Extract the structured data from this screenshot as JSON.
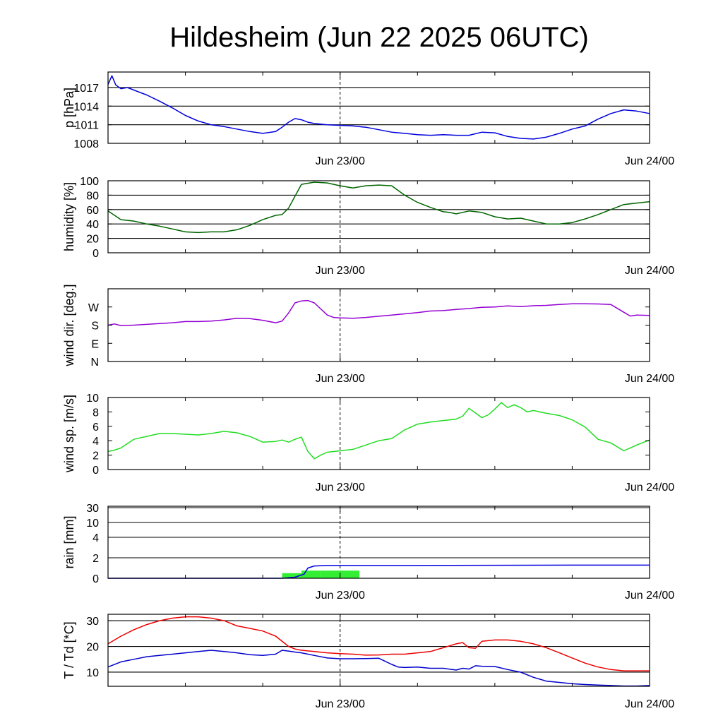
{
  "title": "Hildesheim (Jun 22 2025 06UTC)",
  "x_ticks": [
    {
      "hour": 18,
      "label": "Jun 23/00"
    },
    {
      "hour": 42,
      "label": "Jun 24/00"
    }
  ],
  "x_range_hours": [
    0,
    42
  ],
  "colors": {
    "pressure": "#0000dd",
    "humidity": "#006400",
    "wind_dir": "#9400d3",
    "wind_speed": "#22dd22",
    "rain_bar": "#33ee33",
    "rain_accum": "#0000dd",
    "temperature": "#ee0000",
    "dewpoint": "#0000cc",
    "grid": "#000000"
  },
  "chart_data": [
    {
      "type": "line",
      "ylabel": "p [hPa]",
      "ylim": [
        1008,
        1019.5
      ],
      "yticks": [
        {
          "v": 1008,
          "label": "1008"
        },
        {
          "v": 1011,
          "label": "1011"
        },
        {
          "v": 1014,
          "label": "1014"
        },
        {
          "v": 1017,
          "label": "1017"
        }
      ],
      "grid": [
        1008,
        1011,
        1014,
        1017
      ],
      "series": [
        {
          "key": "pressure",
          "x": [
            0,
            0.3,
            0.6,
            1,
            1.5,
            2,
            3,
            4,
            5,
            6,
            7,
            8,
            9,
            10,
            11,
            12,
            13,
            13.5,
            14,
            14.5,
            15,
            15.5,
            16,
            17,
            18,
            19,
            20,
            21,
            22,
            23,
            24,
            25,
            26,
            27,
            28,
            29,
            30,
            31,
            32,
            33,
            34,
            35,
            36,
            37,
            38,
            39,
            40,
            41,
            42
          ],
          "y": [
            1017.5,
            1018.9,
            1017.4,
            1016.8,
            1017.0,
            1016.6,
            1015.8,
            1014.8,
            1013.7,
            1012.5,
            1011.6,
            1011.0,
            1010.7,
            1010.3,
            1009.9,
            1009.6,
            1009.9,
            1010.6,
            1011.4,
            1012.0,
            1011.8,
            1011.4,
            1011.2,
            1011.0,
            1010.9,
            1010.8,
            1010.6,
            1010.2,
            1009.8,
            1009.6,
            1009.4,
            1009.3,
            1009.4,
            1009.3,
            1009.3,
            1009.8,
            1009.7,
            1009.1,
            1008.8,
            1008.7,
            1009.0,
            1009.6,
            1010.3,
            1010.8,
            1011.9,
            1012.8,
            1013.4,
            1013.2,
            1012.8
          ]
        }
      ]
    },
    {
      "type": "line",
      "ylabel": "humidity [%]",
      "ylim": [
        0,
        100
      ],
      "yticks": [
        {
          "v": 0,
          "label": "0"
        },
        {
          "v": 20,
          "label": "20"
        },
        {
          "v": 40,
          "label": "40"
        },
        {
          "v": 60,
          "label": "60"
        },
        {
          "v": 80,
          "label": "80"
        },
        {
          "v": 100,
          "label": "100"
        }
      ],
      "grid": [
        20,
        40,
        60,
        80,
        100
      ],
      "series": [
        {
          "key": "humidity",
          "x": [
            0,
            1,
            2,
            3,
            4,
            5,
            6,
            7,
            8,
            9,
            10,
            11,
            12,
            13,
            13.5,
            14,
            15,
            16,
            17,
            18,
            19,
            20,
            21,
            22,
            23,
            24,
            25,
            26,
            26.5,
            27,
            28,
            29,
            30,
            31,
            32,
            33,
            34,
            35,
            36,
            37,
            38,
            39,
            40,
            41,
            42
          ],
          "y": [
            58,
            46,
            44,
            40,
            37,
            33,
            29,
            28,
            29,
            29,
            32,
            38,
            46,
            52,
            53,
            62,
            95,
            98,
            97,
            93,
            90,
            93,
            94,
            93,
            80,
            70,
            63,
            57,
            56,
            54,
            58,
            56,
            50,
            47,
            48,
            44,
            40,
            40,
            42,
            47,
            53,
            60,
            67,
            69,
            71
          ]
        }
      ]
    },
    {
      "type": "line",
      "ylabel": "wind dir. [deg.]",
      "ylim": [
        0,
        360
      ],
      "yticks": [
        {
          "v": 0,
          "label": "N"
        },
        {
          "v": 90,
          "label": "E"
        },
        {
          "v": 180,
          "label": "S"
        },
        {
          "v": 270,
          "label": "W"
        }
      ],
      "grid": [],
      "series": [
        {
          "key": "wind_dir",
          "x": [
            0,
            0.5,
            1,
            2,
            3,
            4,
            5,
            6,
            7,
            8,
            9,
            10,
            11,
            12,
            13,
            13.5,
            14,
            14.5,
            15,
            15.5,
            16,
            17,
            17.5,
            18,
            19,
            20,
            21,
            22,
            23,
            24,
            25,
            26,
            27,
            28,
            29,
            30,
            31,
            32,
            33,
            34,
            35,
            36,
            37,
            38,
            39,
            40,
            40.5,
            41,
            42
          ],
          "y": [
            180,
            186,
            178,
            180,
            184,
            188,
            192,
            198,
            198,
            200,
            206,
            214,
            212,
            204,
            192,
            200,
            240,
            290,
            300,
            302,
            290,
            230,
            218,
            216,
            214,
            218,
            224,
            230,
            236,
            242,
            250,
            252,
            258,
            262,
            268,
            270,
            275,
            272,
            276,
            278,
            282,
            286,
            286,
            285,
            282,
            244,
            225,
            230,
            228
          ]
        }
      ]
    },
    {
      "type": "line",
      "ylabel": "wind sp. [m/s]",
      "ylim": [
        0,
        10
      ],
      "yticks": [
        {
          "v": 0,
          "label": "0"
        },
        {
          "v": 2,
          "label": "2"
        },
        {
          "v": 4,
          "label": "4"
        },
        {
          "v": 6,
          "label": "6"
        },
        {
          "v": 8,
          "label": "8"
        },
        {
          "v": 10,
          "label": "10"
        }
      ],
      "grid": [],
      "series": [
        {
          "key": "wind_speed",
          "x": [
            0,
            0.5,
            1,
            2,
            3,
            4,
            5,
            6,
            7,
            8,
            9,
            10,
            11,
            12,
            13,
            13.5,
            14,
            14.5,
            15,
            15.5,
            16,
            16.5,
            17,
            18,
            19,
            20,
            21,
            22,
            23,
            24,
            25,
            26,
            27,
            27.5,
            28,
            29,
            29.5,
            30,
            30.5,
            31,
            31.5,
            32,
            32.5,
            33,
            34,
            35,
            36,
            37,
            38,
            39,
            40,
            41,
            42
          ],
          "y": [
            2.5,
            2.7,
            3.0,
            4.2,
            4.6,
            5.0,
            5.0,
            4.9,
            4.8,
            5.0,
            5.3,
            5.1,
            4.6,
            3.8,
            3.9,
            4.1,
            3.8,
            4.2,
            4.5,
            2.5,
            1.5,
            2.0,
            2.4,
            2.6,
            2.8,
            3.4,
            4.0,
            4.3,
            5.5,
            6.3,
            6.6,
            6.8,
            7.0,
            7.4,
            8.5,
            7.2,
            7.6,
            8.4,
            9.3,
            8.6,
            9.0,
            8.6,
            8.0,
            8.2,
            7.8,
            7.5,
            6.9,
            5.9,
            4.2,
            3.7,
            2.6,
            3.4,
            4.1
          ]
        }
      ]
    },
    {
      "type": "bar",
      "ylabel": "rain [mm]",
      "yticks": [
        {
          "v": 0,
          "label": "0"
        },
        {
          "v": 2,
          "label": "2"
        },
        {
          "v": 4,
          "label": "4"
        },
        {
          "v": 10,
          "label": "10"
        },
        {
          "v": 30,
          "label": "30"
        }
      ],
      "grid": [
        2,
        4,
        10,
        30
      ],
      "bars": [
        {
          "x0": 13.5,
          "x1": 15.0,
          "v": 0.5
        },
        {
          "x0": 15.0,
          "x1": 16.5,
          "v": 0.75
        },
        {
          "x0": 16.5,
          "x1": 19.5,
          "v": 0.75
        }
      ],
      "series": [
        {
          "key": "rain_accum",
          "x": [
            0,
            13.5,
            14.5,
            15.2,
            15.5,
            16.0,
            17,
            18,
            20,
            24,
            30,
            36,
            42
          ],
          "y": [
            0,
            0,
            0.1,
            0.4,
            1.0,
            1.2,
            1.25,
            1.25,
            1.25,
            1.25,
            1.27,
            1.28,
            1.28
          ]
        }
      ]
    },
    {
      "type": "line",
      "ylabel": "T / Td [*C]",
      "ylim": [
        4.5,
        32.5
      ],
      "yticks": [
        {
          "v": 10,
          "label": "10"
        },
        {
          "v": 20,
          "label": "20"
        },
        {
          "v": 30,
          "label": "30"
        }
      ],
      "grid": [
        10,
        20,
        30
      ],
      "series": [
        {
          "key": "temperature",
          "x": [
            0,
            1,
            2,
            3,
            4,
            5,
            6,
            7,
            8,
            9,
            10,
            11,
            12,
            13,
            14,
            14.5,
            15,
            16,
            17,
            18,
            19,
            20,
            21,
            22,
            23,
            24,
            25,
            26,
            27,
            27.5,
            28,
            28.5,
            29,
            30,
            31,
            32,
            33,
            34,
            35,
            36,
            37,
            38,
            39,
            40,
            41,
            42
          ],
          "y": [
            21,
            24,
            26.5,
            28.5,
            30,
            31,
            31.5,
            31.5,
            31,
            30,
            28,
            27,
            26,
            24,
            20,
            19,
            18.5,
            18,
            17.5,
            17.2,
            17,
            16.6,
            16.7,
            17,
            17,
            17.5,
            18,
            19.5,
            21,
            21.5,
            19.5,
            19.3,
            22,
            22.5,
            22.5,
            22,
            21,
            19.5,
            17.5,
            15.5,
            13.5,
            12,
            11,
            10.5,
            10.5,
            10.5
          ]
        },
        {
          "key": "dewpoint",
          "x": [
            0,
            1,
            2,
            3,
            4,
            5,
            6,
            7,
            8,
            9,
            10,
            11,
            12,
            13,
            13.5,
            14,
            14.5,
            15,
            16,
            17,
            18,
            19,
            20,
            21,
            22,
            22.5,
            23,
            24,
            25,
            26,
            27,
            27.5,
            28,
            28.5,
            29,
            30,
            31,
            32,
            33,
            34,
            35,
            36,
            37,
            38,
            39,
            40,
            41,
            42
          ],
          "y": [
            12,
            14,
            15,
            16,
            16.5,
            17,
            17.5,
            18,
            18.5,
            18,
            17.5,
            16.8,
            16.5,
            17,
            18.5,
            18.2,
            17.8,
            17.5,
            16.5,
            15.5,
            15.2,
            15.2,
            15.3,
            15.4,
            13,
            12,
            11.8,
            12,
            11.5,
            11.5,
            10.8,
            11.5,
            11.2,
            12.5,
            12.3,
            12.2,
            11,
            10,
            8,
            6.5,
            6,
            5.5,
            5.2,
            5,
            4.8,
            4.6,
            4.6,
            4.8
          ]
        }
      ]
    }
  ]
}
